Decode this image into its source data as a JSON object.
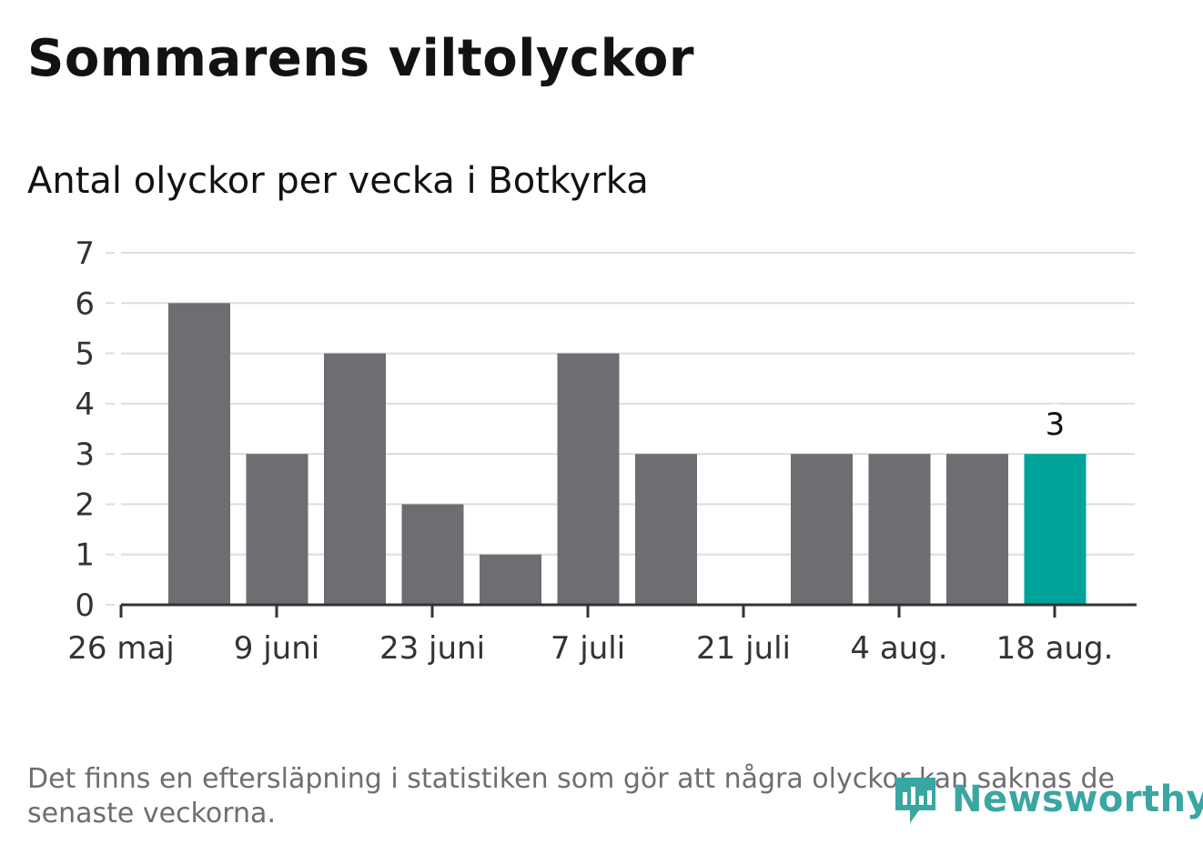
{
  "title": "Sommarens viltolyckor",
  "subtitle": "Antal olyckor per vecka i Botkyrka",
  "footnote": "Det finns en eftersläpning i statistiken som gör att några olyckor kan saknas de senaste veckorna.",
  "logo": {
    "text": "Newsworthy",
    "icon": "newsworthy-logo-icon",
    "color": "#3aa6a2"
  },
  "colors": {
    "bar": "#6e6d72",
    "highlight": "#00a39a",
    "grid": "#dddddd",
    "axis": "#333333",
    "text": "#333333"
  },
  "chart_data": {
    "type": "bar",
    "title": "Sommarens viltolyckor",
    "subtitle": "Antal olyckor per vecka i Botkyrka",
    "xlabel": "",
    "ylabel": "",
    "ylim": [
      0,
      7
    ],
    "yticks": [
      "0",
      "1",
      "2",
      "3",
      "4",
      "5",
      "6",
      "7"
    ],
    "xtick_labels": [
      "26 maj",
      "9 juni",
      "23 juni",
      "7 juli",
      "21 juli",
      "4 aug.",
      "18 aug."
    ],
    "values": [
      6,
      3,
      5,
      2,
      1,
      5,
      3,
      0,
      3,
      3,
      3,
      3
    ],
    "highlight_index": 11,
    "highlight_label": "3",
    "grid": true,
    "legend": "none"
  }
}
